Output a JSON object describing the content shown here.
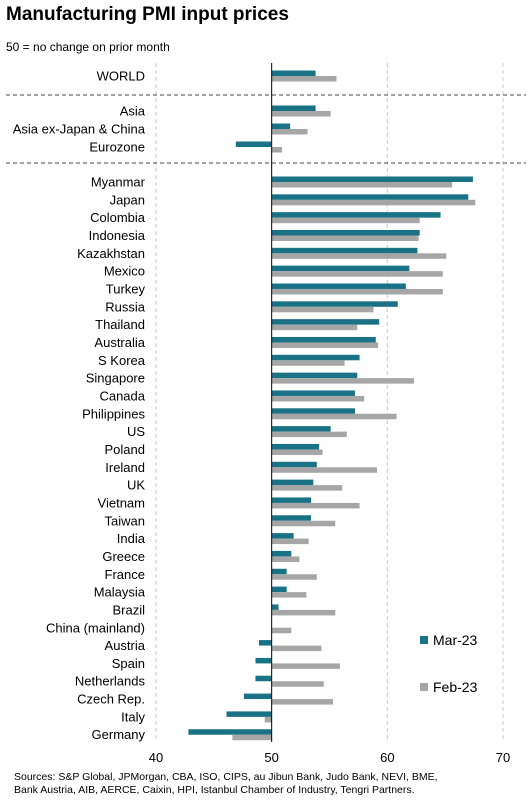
{
  "title": "Manufacturing PMI input prices",
  "subtitle": "50 = no change on prior month",
  "source_lines": [
    "Sources: S&P Global, JPMorgan, CBA, ISO, CIPS, au Jibun Bank, Judo Bank, NEVI, BME,",
    "Bank Austria, AIB, AERCE, Caixin, HPI, Istanbul Chamber of Industry, Tengri Partners."
  ],
  "colors": {
    "mar": "#1a7286",
    "feb": "#a6a6a6"
  },
  "chart_data": {
    "type": "bar",
    "orientation": "horizontal",
    "categories": [
      "WORLD",
      "Asia",
      "Asia ex-Japan & China",
      "Eurozone",
      "Myanmar",
      "Japan",
      "Colombia",
      "Indonesia",
      "Kazakhstan",
      "Mexico",
      "Turkey",
      "Russia",
      "Thailand",
      "Australia",
      "S Korea",
      "Singapore",
      "Canada",
      "Philippines",
      "US",
      "Poland",
      "Ireland",
      "UK",
      "Vietnam",
      "Taiwan",
      "India",
      "Greece",
      "France",
      "Malaysia",
      "Brazil",
      "China (mainland)",
      "Austria",
      "Spain",
      "Netherlands",
      "Czech Rep.",
      "Italy",
      "Germany"
    ],
    "series": [
      {
        "name": "Mar-23",
        "values": [
          53.8,
          53.8,
          51.6,
          46.9,
          67.4,
          67.0,
          64.6,
          62.8,
          62.6,
          61.9,
          61.6,
          60.9,
          59.3,
          59.0,
          57.6,
          57.4,
          57.2,
          57.2,
          55.1,
          54.1,
          53.9,
          53.6,
          53.4,
          53.4,
          51.9,
          51.7,
          51.3,
          51.3,
          50.6,
          50.0,
          48.9,
          48.6,
          48.6,
          47.6,
          46.1,
          42.8
        ]
      },
      {
        "name": "Feb-23",
        "values": [
          55.6,
          55.1,
          53.1,
          50.9,
          65.6,
          67.6,
          62.8,
          62.7,
          65.1,
          64.8,
          64.8,
          58.8,
          57.4,
          59.2,
          56.3,
          62.3,
          58.0,
          60.8,
          56.5,
          54.4,
          59.1,
          56.1,
          57.6,
          55.5,
          53.2,
          52.4,
          53.9,
          53.0,
          55.5,
          51.7,
          54.3,
          55.9,
          54.5,
          55.3,
          49.4,
          46.6
        ]
      }
    ],
    "xlim": [
      40,
      70
    ],
    "xticks": [
      40,
      50,
      60,
      70
    ],
    "group_separators_after": [
      "WORLD",
      "Eurozone"
    ],
    "legend_position": "bottom-right",
    "grid": "vertical dashed"
  }
}
